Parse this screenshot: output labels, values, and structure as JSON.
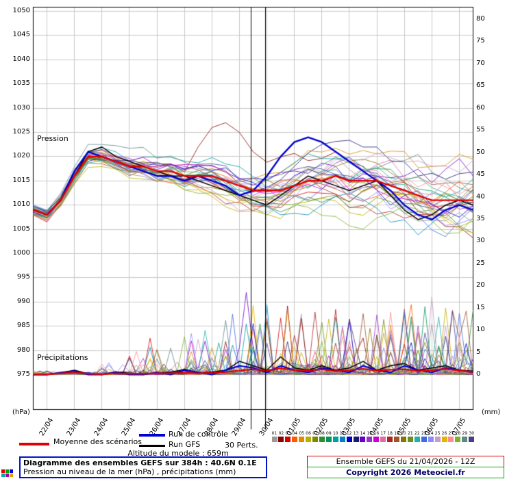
{
  "chart_data": {
    "type": "line",
    "title": "Diagramme des ensembles GEFS sur 384h : 40.6N 0.1E",
    "subtitle": "Pression au niveau de la mer (hPa) , précipitations (mm)",
    "left_unit": "(hPa)",
    "right_unit": "(mm)",
    "pressure_axis": {
      "label": "Pression",
      "min": 975,
      "max": 1050,
      "step": 5
    },
    "precip_axis": {
      "label": "Précipitations",
      "min": 0,
      "max": 80,
      "step": 5
    },
    "x_dates": [
      "22/04",
      "23/04",
      "24/04",
      "25/04",
      "26/04",
      "27/04",
      "28/04",
      "29/04",
      "30/04",
      "01/05",
      "02/05",
      "03/05",
      "04/05",
      "05/05",
      "06/05",
      "07/05"
    ],
    "time_hours": [
      0,
      12,
      24,
      36,
      48,
      60,
      72,
      84,
      96,
      108,
      120,
      132,
      144,
      156,
      168,
      180,
      192,
      204,
      216,
      228,
      240,
      252,
      264,
      276,
      288,
      300,
      312,
      324,
      336,
      348,
      360,
      372,
      384
    ],
    "series": {
      "mean": {
        "name": "Moyenne des scénarios",
        "color": "#e00000",
        "pressure": [
          1009,
          1008,
          1011,
          1016,
          1020,
          1020,
          1019,
          1018,
          1018,
          1017,
          1017,
          1016,
          1016,
          1016,
          1015,
          1014,
          1013,
          1013,
          1013,
          1014,
          1015,
          1015,
          1016,
          1015,
          1015,
          1015,
          1014,
          1013,
          1012,
          1011,
          1011,
          1011,
          1011
        ],
        "precip": [
          0,
          0,
          0.3,
          0.5,
          0.2,
          0.1,
          0.3,
          0.2,
          0.2,
          0.3,
          0.3,
          0.4,
          0.3,
          0.4,
          0.6,
          0.9,
          1.2,
          0.9,
          1.4,
          1.0,
          0.9,
          1.2,
          0.8,
          1.0,
          1.3,
          0.9,
          1.1,
          1.2,
          0.8,
          1.0,
          1.3,
          0.9,
          0.6
        ]
      },
      "control": {
        "name": "Run de contrôle",
        "color": "#0000d0",
        "pressure": [
          1009,
          1008,
          1011,
          1017,
          1021,
          1020,
          1019,
          1018,
          1017,
          1016,
          1016,
          1015,
          1016,
          1015,
          1014,
          1012,
          1013,
          1016,
          1020,
          1023,
          1024,
          1023,
          1021,
          1019,
          1017,
          1015,
          1013,
          1010,
          1008,
          1007,
          1009,
          1010,
          1009
        ],
        "precip": [
          0,
          0,
          0.5,
          0.8,
          0,
          0,
          0.5,
          0,
          0,
          0.5,
          0,
          1,
          0.5,
          0,
          1,
          2,
          1.5,
          0.5,
          2,
          1,
          0.5,
          1.5,
          1,
          0.5,
          2,
          1,
          0.5,
          2,
          1,
          0.5,
          1.5,
          1,
          0.5
        ]
      },
      "gfs": {
        "name": "Run GFS",
        "color": "#000000",
        "pressure": [
          1009,
          1008,
          1011,
          1016,
          1021,
          1022,
          1020,
          1019,
          1018,
          1017,
          1016,
          1016,
          1015,
          1014,
          1013,
          1012,
          1011,
          1010,
          1012,
          1014,
          1016,
          1015,
          1014,
          1013,
          1014,
          1015,
          1012,
          1009,
          1007,
          1008,
          1010,
          1011,
          1010
        ],
        "precip": [
          0,
          0,
          0.4,
          1,
          0.2,
          0,
          0.6,
          0.3,
          0,
          0.4,
          0.5,
          1.2,
          0.4,
          0.6,
          1,
          3,
          2,
          1,
          4,
          1.5,
          1,
          2,
          1,
          1.5,
          3,
          1,
          2,
          2.5,
          1,
          1.5,
          2,
          1,
          0.8
        ]
      }
    },
    "members": {
      "count": 30,
      "label": "30 Perts.",
      "numbers": [
        "01",
        "02",
        "03",
        "04",
        "05",
        "06",
        "07",
        "08",
        "09",
        "10",
        "11",
        "12",
        "13",
        "14",
        "15",
        "16",
        "17",
        "18",
        "19",
        "20",
        "21",
        "22",
        "23",
        "24",
        "25",
        "26",
        "27",
        "28",
        "29",
        "30"
      ],
      "colors": [
        "#9a9a9a",
        "#8b0000",
        "#d40000",
        "#ff5a00",
        "#e08a00",
        "#bcae00",
        "#7a8a00",
        "#2e8b2e",
        "#00965a",
        "#00a0a0",
        "#0082c8",
        "#0000cd",
        "#191970",
        "#6a00c8",
        "#9932cc",
        "#cc00cc",
        "#dc6ea0",
        "#b22222",
        "#a0522d",
        "#8b7300",
        "#6b8e23",
        "#20b2aa",
        "#4169e1",
        "#8c8cff",
        "#c89bc8",
        "#e6b400",
        "#ff8c8c",
        "#78b428",
        "#5f8787",
        "#483d8b"
      ]
    },
    "vertical_markers_hours": [
      190,
      203
    ],
    "grid_color": "#c9c9c9"
  },
  "footer": {
    "altitude": "Altitude du modele : 659m",
    "run_info": "Ensemble GEFS du 21/04/2026 - 12Z",
    "copyright": "Copyright 2026 Meteociel.fr"
  }
}
